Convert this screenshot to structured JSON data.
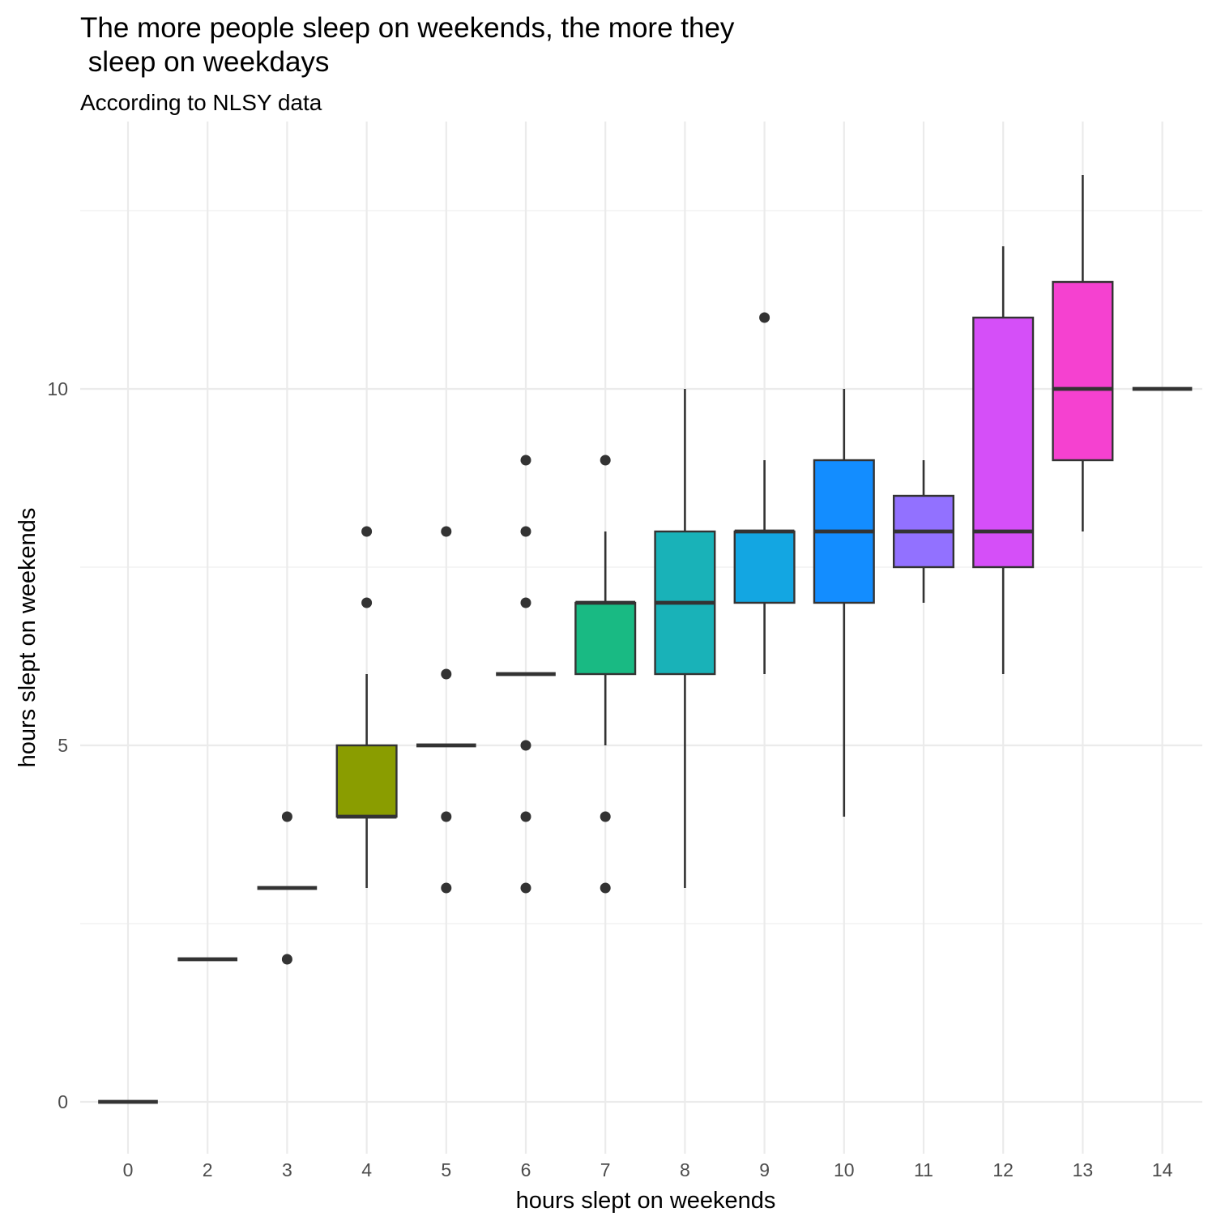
{
  "chart_data": {
    "type": "boxplot",
    "title_lines": [
      "The more people sleep on weekends, the more they",
      " sleep on weekdays"
    ],
    "subtitle": "According to NLSY data",
    "xlabel": "hours slept on weekends",
    "ylabel": "hours slept on weekends",
    "categories": [
      "0",
      "2",
      "3",
      "4",
      "5",
      "6",
      "7",
      "8",
      "9",
      "10",
      "11",
      "12",
      "13",
      "14"
    ],
    "y_ticks": [
      0,
      5,
      10
    ],
    "ylim": [
      -0.6,
      14.2
    ],
    "grid": true,
    "legend": "none",
    "boxes": [
      {
        "category": "0",
        "lower_whisker": 0,
        "q1": 0,
        "median": 0,
        "q3": 0,
        "upper_whisker": 0,
        "outliers": [],
        "fill": "#F8766D"
      },
      {
        "category": "2",
        "lower_whisker": 2,
        "q1": 2,
        "median": 2,
        "q3": 2,
        "upper_whisker": 2,
        "outliers": [],
        "fill": "#E38900"
      },
      {
        "category": "3",
        "lower_whisker": 3,
        "q1": 3,
        "median": 3,
        "q3": 3,
        "upper_whisker": 3,
        "outliers": [
          2,
          4
        ],
        "fill": "#C49A00"
      },
      {
        "category": "4",
        "lower_whisker": 3,
        "q1": 4,
        "median": 4,
        "q3": 5,
        "upper_whisker": 6,
        "outliers": [
          7,
          8
        ],
        "fill": "#8A9D00"
      },
      {
        "category": "5",
        "lower_whisker": 5,
        "q1": 5,
        "median": 5,
        "q3": 5,
        "upper_whisker": 5,
        "outliers": [
          3,
          4,
          6,
          8
        ],
        "fill": "#53A800"
      },
      {
        "category": "6",
        "lower_whisker": 6,
        "q1": 6,
        "median": 6,
        "q3": 6,
        "upper_whisker": 6,
        "outliers": [
          3,
          4,
          5,
          7,
          8,
          9
        ],
        "fill": "#00B86B"
      },
      {
        "category": "7",
        "lower_whisker": 5,
        "q1": 6,
        "median": 7,
        "q3": 7,
        "upper_whisker": 8,
        "outliers": [
          3,
          4,
          9
        ],
        "fill": "#19BA83"
      },
      {
        "category": "8",
        "lower_whisker": 3,
        "q1": 6,
        "median": 7,
        "q3": 8,
        "upper_whisker": 10,
        "outliers": [],
        "fill": "#19B2B8"
      },
      {
        "category": "9",
        "lower_whisker": 6,
        "q1": 7,
        "median": 8,
        "q3": 8,
        "upper_whisker": 9,
        "outliers": [
          11
        ],
        "fill": "#13A6E2"
      },
      {
        "category": "10",
        "lower_whisker": 4,
        "q1": 7,
        "median": 8,
        "q3": 9,
        "upper_whisker": 10,
        "outliers": [],
        "fill": "#138DFF"
      },
      {
        "category": "11",
        "lower_whisker": 7,
        "q1": 7.5,
        "median": 8,
        "q3": 8.5,
        "upper_whisker": 9,
        "outliers": [],
        "fill": "#9271FF"
      },
      {
        "category": "12",
        "lower_whisker": 6,
        "q1": 7.5,
        "median": 8,
        "q3": 11,
        "upper_whisker": 12,
        "outliers": [],
        "fill": "#D54FF8"
      },
      {
        "category": "13",
        "lower_whisker": 8,
        "q1": 9,
        "median": 10,
        "q3": 11.5,
        "upper_whisker": 13,
        "outliers": [],
        "fill": "#F541D0"
      },
      {
        "category": "14",
        "lower_whisker": 10,
        "q1": 10,
        "median": 10,
        "q3": 10,
        "upper_whisker": 10,
        "outliers": [],
        "fill": "#FF61C3"
      }
    ]
  }
}
